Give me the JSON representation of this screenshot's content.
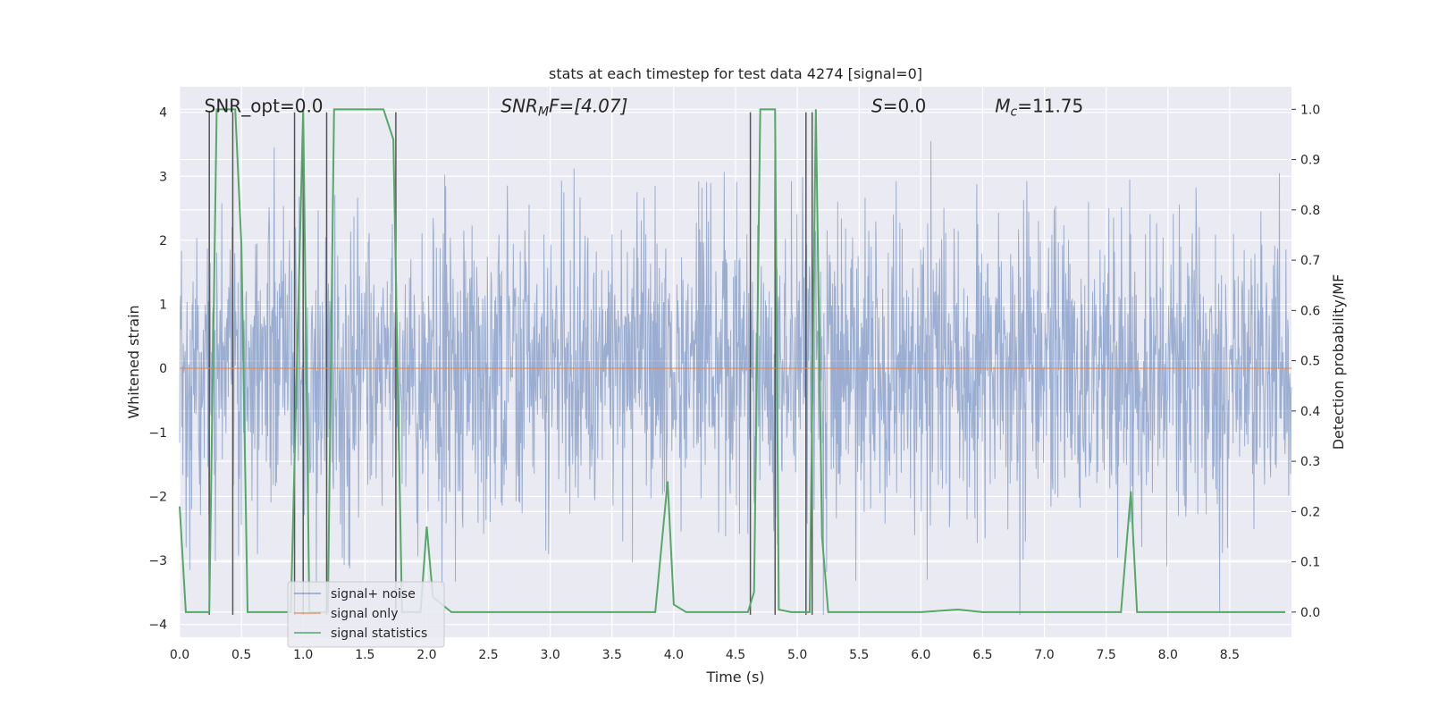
{
  "chart_data": {
    "type": "line",
    "title": "stats at each timestep for test data 4274 [signal=0]",
    "xlabel": "Time (s)",
    "ylabel": "Whitened strain",
    "y2label": "Detection probability/MF",
    "xlim": [
      0.0,
      9.0
    ],
    "ylim": [
      -4.2,
      4.4
    ],
    "y2lim": [
      -0.05,
      1.045
    ],
    "xticks": [
      "0.0",
      "0.5",
      "1.0",
      "1.5",
      "2.0",
      "2.5",
      "3.0",
      "3.5",
      "4.0",
      "4.5",
      "5.0",
      "5.5",
      "6.0",
      "6.5",
      "7.0",
      "7.5",
      "8.0",
      "8.5"
    ],
    "yticks": [
      "4",
      "3",
      "2",
      "1",
      "0",
      "−1",
      "−2",
      "−3",
      "−4"
    ],
    "y2ticks": [
      "1.0",
      "0.9",
      "0.8",
      "0.7",
      "0.6",
      "0.5",
      "0.4",
      "0.3",
      "0.2",
      "0.1",
      "0.0"
    ],
    "grid": true,
    "legend_position": "lower-left",
    "annotations": [
      {
        "plain": "SNR_opt=0.0",
        "x": 0.2,
        "y": 4.0
      },
      {
        "prefix": "SNR",
        "sub": "M",
        "suffix": "F=[4.07]",
        "x": 2.6,
        "y": 4.0
      },
      {
        "prefix": "S",
        "sub": "",
        "suffix": "=0.0",
        "x": 5.6,
        "y": 4.0
      },
      {
        "prefix": "M",
        "sub": "c",
        "suffix": "=11.75",
        "x": 6.6,
        "y": 4.0
      }
    ],
    "series": [
      {
        "name": "signal+ noise",
        "color": "#4c72b0",
        "kind": "noise",
        "amplitude_sigma": 1.0,
        "x_range": [
          0.0,
          9.0
        ]
      },
      {
        "name": "signal only",
        "color": "#dd8452",
        "kind": "flat",
        "value": 0.0
      },
      {
        "name": "signal statistics",
        "color": "#55a868",
        "axis": "y2",
        "x": [
          0.0,
          0.05,
          0.24,
          0.3,
          0.4,
          0.45,
          0.5,
          0.55,
          0.9,
          0.95,
          1.0,
          1.05,
          1.2,
          1.25,
          1.5,
          1.65,
          1.73,
          1.8,
          1.95,
          2.0,
          2.05,
          2.2,
          2.5,
          3.0,
          3.5,
          3.85,
          3.95,
          4.0,
          4.1,
          4.6,
          4.65,
          4.7,
          4.82,
          4.85,
          4.95,
          5.05,
          5.1,
          5.15,
          5.2,
          5.25,
          5.5,
          6.0,
          6.3,
          6.5,
          7.0,
          7.62,
          7.7,
          7.75,
          8.0,
          8.3,
          8.5,
          8.95
        ],
        "values": [
          0.21,
          0.0,
          0.0,
          1.0,
          1.0,
          1.0,
          0.73,
          0.0,
          0.0,
          0.5,
          1.0,
          0.0,
          0.0,
          1.0,
          1.0,
          1.0,
          0.94,
          0.0,
          0.0,
          0.17,
          0.03,
          0.0,
          0.0,
          0.0,
          0.0,
          0.0,
          0.26,
          0.015,
          0.0,
          0.0,
          0.04,
          1.0,
          1.0,
          0.005,
          0.0,
          0.0,
          0.0,
          1.0,
          0.15,
          0.0,
          0.0,
          0.0,
          0.005,
          0.0,
          0.0,
          0.0,
          0.24,
          0.0,
          0.0,
          0.0,
          0.0,
          0.0
        ]
      }
    ],
    "vertical_markers": {
      "color": "#555555",
      "x": [
        0.24,
        0.43,
        0.93,
        1.0,
        1.19,
        1.75,
        4.62,
        4.82,
        5.07,
        5.12
      ],
      "y_range": [
        -3.85,
        4.0
      ]
    }
  }
}
